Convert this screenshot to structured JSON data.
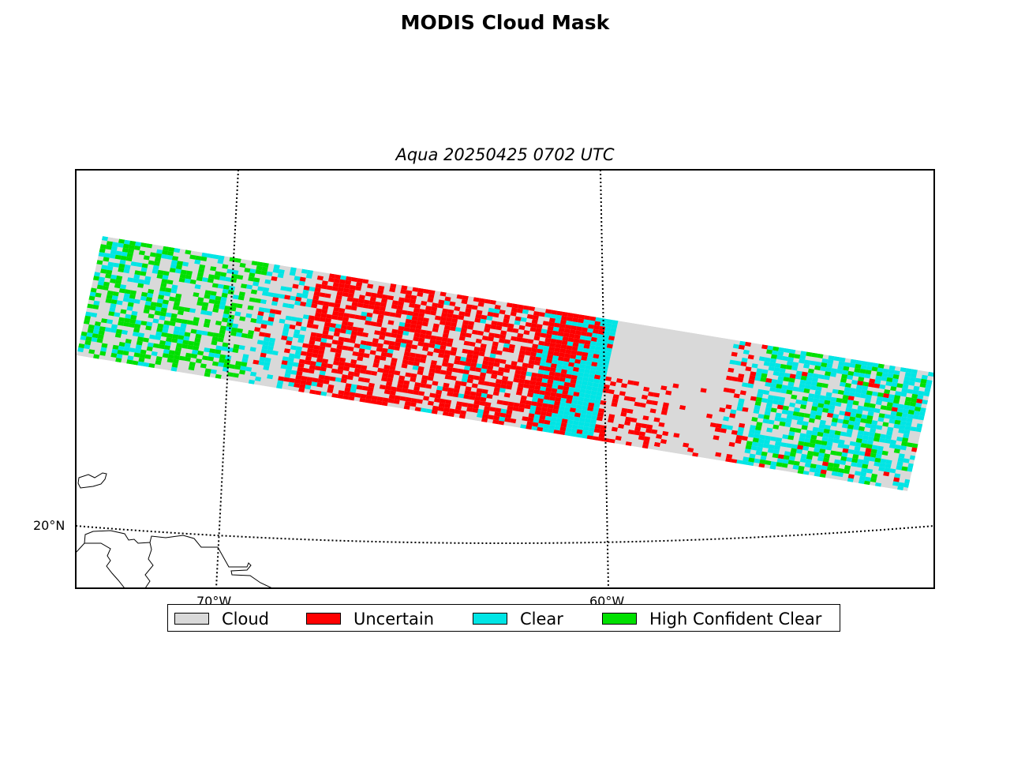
{
  "title": "MODIS Cloud Mask",
  "subtitle": "Aqua 20250425 0702 UTC",
  "graticule": {
    "lon_labels": [
      "70°W",
      "60°W"
    ],
    "lat_labels": [
      "20°N"
    ]
  },
  "legend": [
    {
      "label": "Cloud",
      "color": "#d9d9d9"
    },
    {
      "label": "Uncertain",
      "color": "#ff0000"
    },
    {
      "label": "Clear",
      "color": "#00e5e5"
    },
    {
      "label": "High Confident Clear",
      "color": "#00e000"
    }
  ]
}
